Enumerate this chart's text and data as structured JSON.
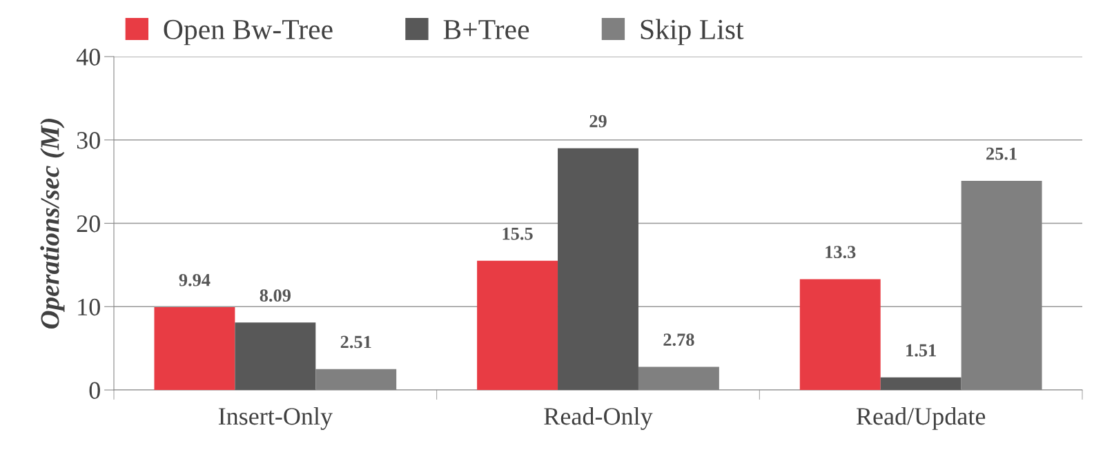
{
  "chart_data": {
    "type": "bar",
    "ylabel": "Operations/sec (M)",
    "categories": [
      "Insert-Only",
      "Read-Only",
      "Read/Update"
    ],
    "series": [
      {
        "name": "Open Bw-Tree",
        "color": "#e83c44",
        "values": [
          9.94,
          15.5,
          13.3
        ]
      },
      {
        "name": "B+Tree",
        "color": "#585858",
        "values": [
          8.09,
          29,
          1.51
        ]
      },
      {
        "name": "Skip List",
        "color": "#808080",
        "values": [
          2.51,
          2.78,
          25.1
        ]
      }
    ],
    "ylim": [
      0,
      40
    ],
    "yticks": [
      0,
      10,
      20,
      30,
      40
    ],
    "grid": "y",
    "legend": "top",
    "data_labels": true
  }
}
